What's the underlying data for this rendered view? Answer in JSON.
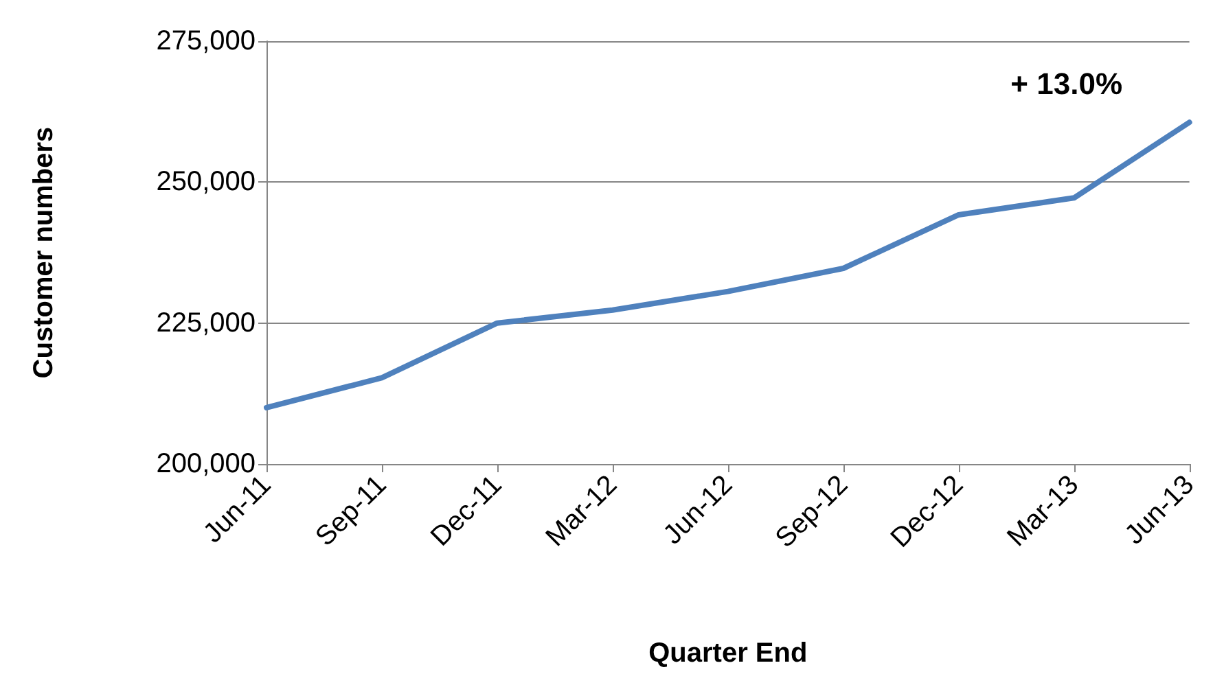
{
  "chart_data": {
    "type": "line",
    "xlabel": "Quarter End",
    "ylabel": "Customer numbers",
    "categories": [
      "Jun-11",
      "Sep-11",
      "Dec-11",
      "Mar-12",
      "Jun-12",
      "Sep-12",
      "Dec-12",
      "Mar-13",
      "Jun-13"
    ],
    "series": [
      {
        "color": "#4f81bd",
        "values": [
          210000,
          215300,
          225000,
          227300,
          230600,
          234700,
          244200,
          247200,
          260600
        ]
      }
    ],
    "ylim": [
      200000,
      275000
    ],
    "yticks": [
      {
        "value": 200000,
        "label": "200,000"
      },
      {
        "value": 225000,
        "label": "225,000"
      },
      {
        "value": 250000,
        "label": "250,000"
      },
      {
        "value": 275000,
        "label": "275,000"
      }
    ],
    "grid": "y",
    "marker": "none",
    "line_style": "solid",
    "annotations": [
      "+ 13.0%"
    ]
  }
}
